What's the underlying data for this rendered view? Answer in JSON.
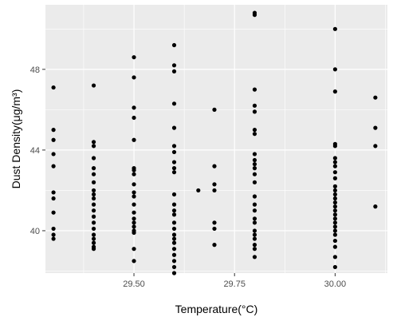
{
  "chart_data": {
    "type": "scatter",
    "xlabel": "Temperature(°C)",
    "ylabel": "Dust Density(μg/m³)",
    "xlim": [
      29.28,
      30.13
    ],
    "ylim": [
      37.9,
      51.2
    ],
    "xticks": [
      29.5,
      29.75,
      30.0
    ],
    "xtick_labels": [
      "29.50",
      "29.75",
      "30.00"
    ],
    "yticks": [
      40,
      44,
      48
    ],
    "ytick_labels": [
      "40",
      "44",
      "48"
    ],
    "grid": true,
    "legend": "none",
    "panel_color": "#ebebeb",
    "grid_color": "#ffffff",
    "point_color": "#000000",
    "points": [
      {
        "x": 29.3,
        "y": 47.1
      },
      {
        "x": 29.3,
        "y": 45.0
      },
      {
        "x": 29.3,
        "y": 44.5
      },
      {
        "x": 29.3,
        "y": 43.8
      },
      {
        "x": 29.3,
        "y": 43.2
      },
      {
        "x": 29.3,
        "y": 41.9
      },
      {
        "x": 29.3,
        "y": 41.6
      },
      {
        "x": 29.3,
        "y": 40.9
      },
      {
        "x": 29.3,
        "y": 40.1
      },
      {
        "x": 29.3,
        "y": 39.8
      },
      {
        "x": 29.3,
        "y": 39.6
      },
      {
        "x": 29.4,
        "y": 47.2
      },
      {
        "x": 29.4,
        "y": 44.4
      },
      {
        "x": 29.4,
        "y": 44.2
      },
      {
        "x": 29.4,
        "y": 43.6
      },
      {
        "x": 29.4,
        "y": 43.1
      },
      {
        "x": 29.4,
        "y": 42.8
      },
      {
        "x": 29.4,
        "y": 42.4
      },
      {
        "x": 29.4,
        "y": 42.0
      },
      {
        "x": 29.4,
        "y": 41.8
      },
      {
        "x": 29.4,
        "y": 41.6
      },
      {
        "x": 29.4,
        "y": 41.3
      },
      {
        "x": 29.4,
        "y": 41.0
      },
      {
        "x": 29.4,
        "y": 40.7
      },
      {
        "x": 29.4,
        "y": 40.4
      },
      {
        "x": 29.4,
        "y": 40.1
      },
      {
        "x": 29.4,
        "y": 39.8
      },
      {
        "x": 29.4,
        "y": 39.6
      },
      {
        "x": 29.4,
        "y": 39.4
      },
      {
        "x": 29.4,
        "y": 39.2
      },
      {
        "x": 29.4,
        "y": 39.1
      },
      {
        "x": 29.5,
        "y": 48.6
      },
      {
        "x": 29.5,
        "y": 47.6
      },
      {
        "x": 29.5,
        "y": 46.1
      },
      {
        "x": 29.5,
        "y": 45.6
      },
      {
        "x": 29.5,
        "y": 44.5
      },
      {
        "x": 29.5,
        "y": 43.1
      },
      {
        "x": 29.5,
        "y": 43.0
      },
      {
        "x": 29.5,
        "y": 42.8
      },
      {
        "x": 29.5,
        "y": 42.3
      },
      {
        "x": 29.5,
        "y": 41.9
      },
      {
        "x": 29.5,
        "y": 41.7
      },
      {
        "x": 29.5,
        "y": 41.3
      },
      {
        "x": 29.5,
        "y": 40.9
      },
      {
        "x": 29.5,
        "y": 40.6
      },
      {
        "x": 29.5,
        "y": 40.4
      },
      {
        "x": 29.5,
        "y": 40.2
      },
      {
        "x": 29.5,
        "y": 40.0
      },
      {
        "x": 29.5,
        "y": 39.9
      },
      {
        "x": 29.5,
        "y": 39.1
      },
      {
        "x": 29.5,
        "y": 38.5
      },
      {
        "x": 29.6,
        "y": 49.2
      },
      {
        "x": 29.6,
        "y": 48.2
      },
      {
        "x": 29.6,
        "y": 47.9
      },
      {
        "x": 29.6,
        "y": 46.3
      },
      {
        "x": 29.6,
        "y": 45.1
      },
      {
        "x": 29.6,
        "y": 44.2
      },
      {
        "x": 29.6,
        "y": 43.9
      },
      {
        "x": 29.6,
        "y": 43.4
      },
      {
        "x": 29.6,
        "y": 43.1
      },
      {
        "x": 29.6,
        "y": 42.9
      },
      {
        "x": 29.6,
        "y": 41.8
      },
      {
        "x": 29.6,
        "y": 41.3
      },
      {
        "x": 29.6,
        "y": 41.0
      },
      {
        "x": 29.6,
        "y": 40.8
      },
      {
        "x": 29.6,
        "y": 40.4
      },
      {
        "x": 29.6,
        "y": 40.1
      },
      {
        "x": 29.6,
        "y": 39.8
      },
      {
        "x": 29.6,
        "y": 39.6
      },
      {
        "x": 29.6,
        "y": 39.4
      },
      {
        "x": 29.6,
        "y": 39.1
      },
      {
        "x": 29.6,
        "y": 38.8
      },
      {
        "x": 29.6,
        "y": 38.5
      },
      {
        "x": 29.6,
        "y": 38.2
      },
      {
        "x": 29.6,
        "y": 37.9
      },
      {
        "x": 29.66,
        "y": 42.0
      },
      {
        "x": 29.7,
        "y": 46.0
      },
      {
        "x": 29.7,
        "y": 43.2
      },
      {
        "x": 29.7,
        "y": 42.3
      },
      {
        "x": 29.7,
        "y": 42.0
      },
      {
        "x": 29.7,
        "y": 40.4
      },
      {
        "x": 29.7,
        "y": 40.1
      },
      {
        "x": 29.7,
        "y": 39.3
      },
      {
        "x": 29.8,
        "y": 50.8
      },
      {
        "x": 29.8,
        "y": 50.7
      },
      {
        "x": 29.8,
        "y": 47.0
      },
      {
        "x": 29.8,
        "y": 46.2
      },
      {
        "x": 29.8,
        "y": 45.9
      },
      {
        "x": 29.8,
        "y": 45.0
      },
      {
        "x": 29.8,
        "y": 44.8
      },
      {
        "x": 29.8,
        "y": 43.8
      },
      {
        "x": 29.8,
        "y": 43.5
      },
      {
        "x": 29.8,
        "y": 43.3
      },
      {
        "x": 29.8,
        "y": 43.1
      },
      {
        "x": 29.8,
        "y": 42.8
      },
      {
        "x": 29.8,
        "y": 42.4
      },
      {
        "x": 29.8,
        "y": 41.7
      },
      {
        "x": 29.8,
        "y": 41.3
      },
      {
        "x": 29.8,
        "y": 41.0
      },
      {
        "x": 29.8,
        "y": 40.6
      },
      {
        "x": 29.8,
        "y": 40.4
      },
      {
        "x": 29.8,
        "y": 40.0
      },
      {
        "x": 29.8,
        "y": 39.8
      },
      {
        "x": 29.8,
        "y": 39.6
      },
      {
        "x": 29.8,
        "y": 39.3
      },
      {
        "x": 29.8,
        "y": 39.1
      },
      {
        "x": 29.8,
        "y": 38.7
      },
      {
        "x": 30.0,
        "y": 50.0
      },
      {
        "x": 30.0,
        "y": 48.0
      },
      {
        "x": 30.0,
        "y": 46.9
      },
      {
        "x": 30.0,
        "y": 44.3
      },
      {
        "x": 30.0,
        "y": 44.2
      },
      {
        "x": 30.0,
        "y": 43.6
      },
      {
        "x": 30.0,
        "y": 43.4
      },
      {
        "x": 30.0,
        "y": 43.2
      },
      {
        "x": 30.0,
        "y": 42.9
      },
      {
        "x": 30.0,
        "y": 42.6
      },
      {
        "x": 30.0,
        "y": 42.2
      },
      {
        "x": 30.0,
        "y": 42.0
      },
      {
        "x": 30.0,
        "y": 41.8
      },
      {
        "x": 30.0,
        "y": 41.6
      },
      {
        "x": 30.0,
        "y": 41.4
      },
      {
        "x": 30.0,
        "y": 41.2
      },
      {
        "x": 30.0,
        "y": 41.0
      },
      {
        "x": 30.0,
        "y": 40.8
      },
      {
        "x": 30.0,
        "y": 40.6
      },
      {
        "x": 30.0,
        "y": 40.4
      },
      {
        "x": 30.0,
        "y": 40.2
      },
      {
        "x": 30.0,
        "y": 40.0
      },
      {
        "x": 30.0,
        "y": 39.8
      },
      {
        "x": 30.0,
        "y": 39.5
      },
      {
        "x": 30.0,
        "y": 39.2
      },
      {
        "x": 30.0,
        "y": 38.7
      },
      {
        "x": 30.0,
        "y": 38.2
      },
      {
        "x": 30.1,
        "y": 46.6
      },
      {
        "x": 30.1,
        "y": 45.1
      },
      {
        "x": 30.1,
        "y": 44.2
      },
      {
        "x": 30.1,
        "y": 41.2
      }
    ]
  }
}
